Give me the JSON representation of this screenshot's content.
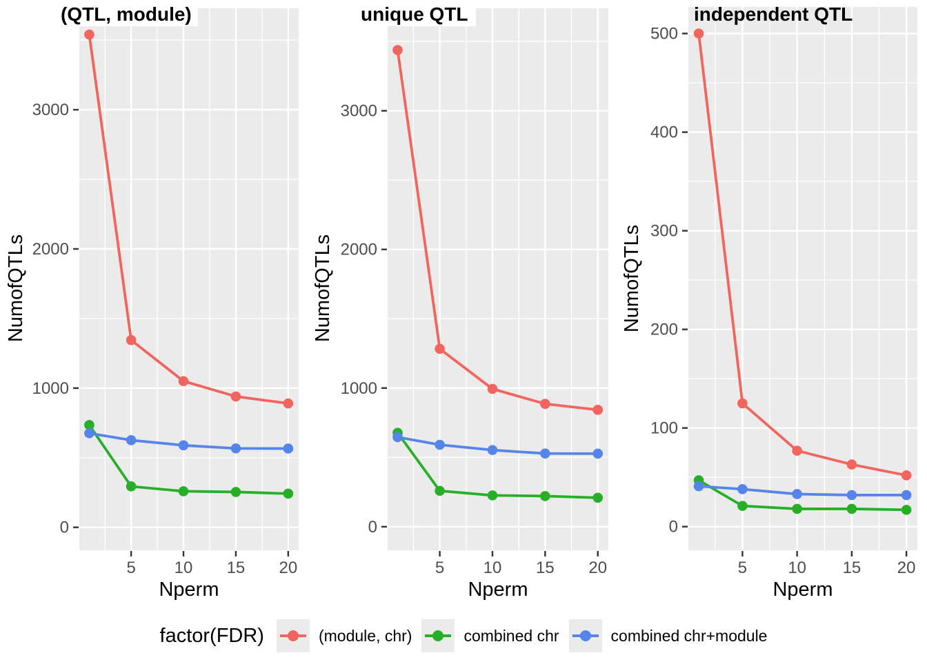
{
  "colors": {
    "red": "#F2655E",
    "green": "#27B027",
    "blue": "#5585E8",
    "panel_bg": "#EBEBEB",
    "grid": "#FFFFFF",
    "tick_text": "#4D4D4D",
    "tick_mark": "#333333",
    "title_text": "#000000",
    "legend_key_bg": "#EBEBEB"
  },
  "legend": {
    "title": "factor(FDR)",
    "items": [
      {
        "label": "(module, chr)",
        "color_key": "red"
      },
      {
        "label": "combined chr",
        "color_key": "green"
      },
      {
        "label": "combined chr+module",
        "color_key": "blue"
      }
    ]
  },
  "chart_data": [
    {
      "type": "line",
      "title": "(QTL, module)",
      "xlabel": "Nperm",
      "ylabel": "NumofQTLs",
      "x": [
        1,
        5,
        10,
        15,
        20
      ],
      "xlim": [
        0.05,
        21
      ],
      "xticks": [
        5,
        10,
        15,
        20
      ],
      "x_minor": [
        2.5,
        7.5,
        12.5,
        17.5
      ],
      "ylim": [
        -165,
        3600
      ],
      "yticks": [
        0,
        1000,
        2000,
        3000
      ],
      "y_minor": [
        500,
        1500,
        2500,
        3500
      ],
      "series": [
        {
          "name": "(module, chr)",
          "color_key": "red",
          "values": [
            3540,
            1345,
            1050,
            940,
            890
          ]
        },
        {
          "name": "combined chr",
          "color_key": "green",
          "values": [
            735,
            294,
            259,
            254,
            242
          ]
        },
        {
          "name": "combined chr+module",
          "color_key": "blue",
          "values": [
            676,
            626,
            589,
            567,
            566
          ]
        }
      ]
    },
    {
      "type": "line",
      "title": "unique QTL",
      "xlabel": "Nperm",
      "ylabel": "NumofQTLs",
      "x": [
        1,
        5,
        10,
        15,
        20
      ],
      "xlim": [
        0.05,
        21
      ],
      "xticks": [
        5,
        10,
        15,
        20
      ],
      "x_minor": [
        2.5,
        7.5,
        12.5,
        17.5
      ],
      "ylim": [
        -170,
        3610
      ],
      "yticks": [
        0,
        1000,
        2000,
        3000
      ],
      "y_minor": [
        500,
        1500,
        2500,
        3500
      ],
      "series": [
        {
          "name": "(module, chr)",
          "color_key": "red",
          "values": [
            3438,
            1283,
            994,
            886,
            843
          ]
        },
        {
          "name": "combined chr",
          "color_key": "green",
          "values": [
            677,
            259,
            226,
            221,
            209
          ]
        },
        {
          "name": "combined chr+module",
          "color_key": "blue",
          "values": [
            646,
            591,
            553,
            528,
            527
          ]
        }
      ]
    },
    {
      "type": "line",
      "title": "independent QTL",
      "xlabel": "Nperm",
      "ylabel": "NumofQTLs",
      "x": [
        1,
        5,
        10,
        15,
        20
      ],
      "xlim": [
        0.05,
        21
      ],
      "xticks": [
        5,
        10,
        15,
        20
      ],
      "x_minor": [
        2.5,
        7.5,
        12.5,
        17.5
      ],
      "ylim": [
        -24,
        527
      ],
      "yticks": [
        0,
        100,
        200,
        300,
        400,
        500
      ],
      "y_minor": [
        50,
        150,
        250,
        350,
        450
      ],
      "series": [
        {
          "name": "(module, chr)",
          "color_key": "red",
          "values": [
            500,
            125,
            77,
            63,
            52
          ]
        },
        {
          "name": "combined chr",
          "color_key": "green",
          "values": [
            47,
            21,
            18,
            18,
            17
          ]
        },
        {
          "name": "combined chr+module",
          "color_key": "blue",
          "values": [
            41,
            38,
            33,
            32,
            32
          ]
        }
      ]
    }
  ]
}
